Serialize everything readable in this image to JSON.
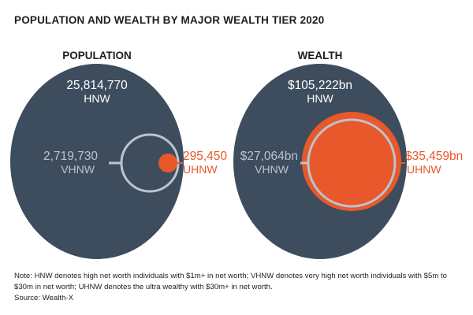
{
  "chart_data": {
    "type": "bubble",
    "title": "POPULATION AND WEALTH BY MAJOR WEALTH TIER 2020",
    "panels": [
      {
        "name": "POPULATION",
        "unit": "individuals",
        "tiers": [
          {
            "tier": "HNW",
            "value": 25814770,
            "value_label": "25,814,770"
          },
          {
            "tier": "VHNW",
            "value": 2719730,
            "value_label": "2,719,730"
          },
          {
            "tier": "UHNW",
            "value": 295450,
            "value_label": "295,450"
          }
        ]
      },
      {
        "name": "WEALTH",
        "unit": "US$ bn",
        "tiers": [
          {
            "tier": "HNW",
            "value": 105222,
            "value_label": "$105,222bn"
          },
          {
            "tier": "VHNW",
            "value": 27064,
            "value_label": "$27,064bn"
          },
          {
            "tier": "UHNW",
            "value": 35459,
            "value_label": "$35,459bn"
          }
        ]
      }
    ],
    "colors": {
      "HNW": "#3d4d5e",
      "VHNW": "#b9c4d0",
      "UHNW": "#e8582a"
    }
  },
  "footer": {
    "note": "Note: HNW denotes high net worth individuals with $1m+ in net worth; VHNW denotes very high net worth individuals with $5m to $30m in net worth; UHNW denotes the ultra wealthy with $30m+ in net worth.",
    "source": "Source: Wealth-X"
  }
}
